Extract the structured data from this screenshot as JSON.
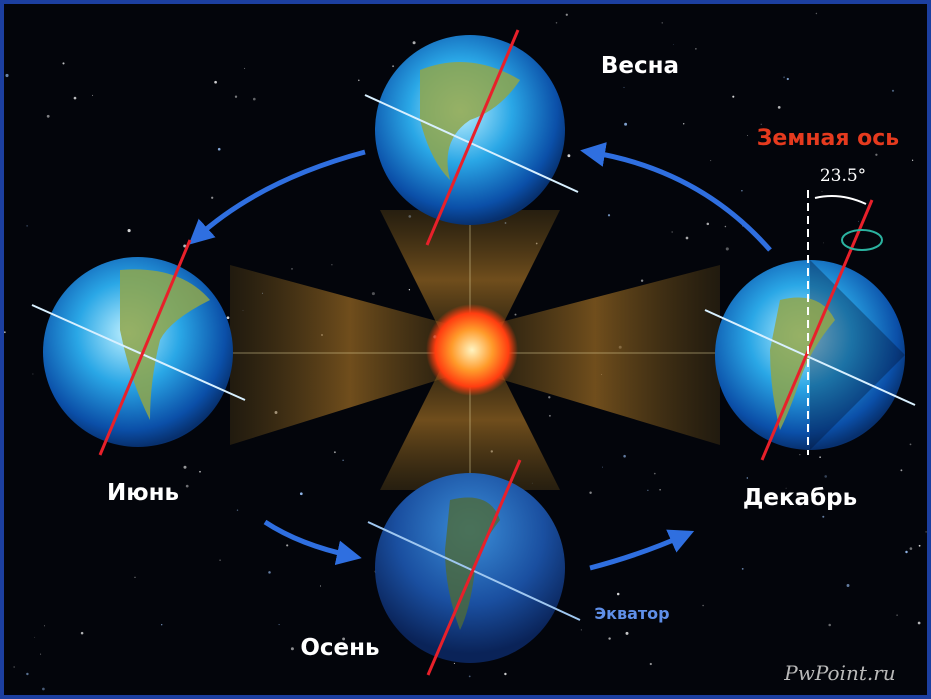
{
  "seasons": {
    "spring": "Весна",
    "june": "Июнь",
    "december": "Декабрь",
    "autumn": "Осень"
  },
  "axis": {
    "title": "Земная ось",
    "tilt": "23.5°"
  },
  "equator": "Экватор",
  "watermark": "PwPoint.ru"
}
